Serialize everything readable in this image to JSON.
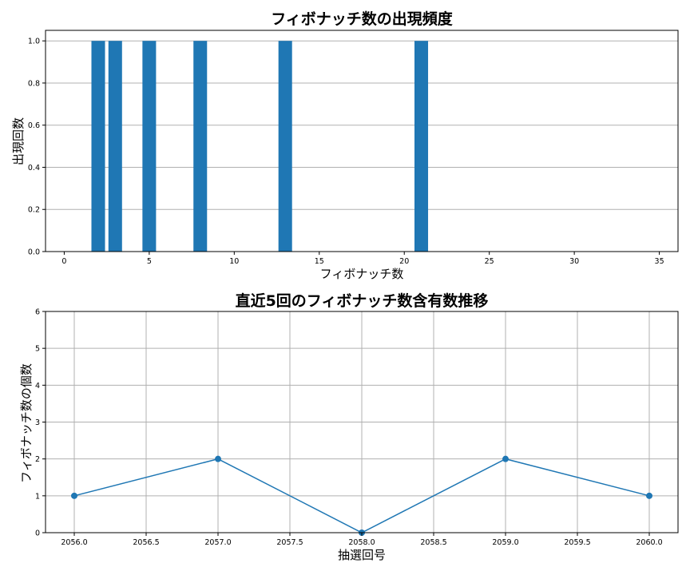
{
  "chart_data": [
    {
      "type": "bar",
      "title": "フィボナッチ数の出現頻度",
      "xlabel": "フィボナッチ数",
      "ylabel": "出現回数",
      "categories": [
        2,
        3,
        5,
        8,
        13,
        21
      ],
      "values": [
        1,
        1,
        1,
        1,
        1,
        1
      ],
      "xlim": [
        -1.1,
        36.1
      ],
      "ylim": [
        0,
        1.05
      ],
      "xticks": [
        0,
        5,
        10,
        15,
        20,
        25,
        30,
        35
      ],
      "xtick_labels": [
        "0",
        "5",
        "10",
        "15",
        "20",
        "25",
        "30",
        "35"
      ],
      "yticks": [
        0.0,
        0.2,
        0.4,
        0.6,
        0.8,
        1.0
      ],
      "ytick_labels": [
        "0.0",
        "0.2",
        "0.4",
        "0.6",
        "0.8",
        "1.0"
      ],
      "grid": "y-axis",
      "bar_color": "#1f77b4"
    },
    {
      "type": "line",
      "title": "直近5回のフィボナッチ数含有数推移",
      "xlabel": "抽選回号",
      "ylabel": "フィボナッチ数の個数",
      "x": [
        2056,
        2057,
        2058,
        2059,
        2060
      ],
      "values": [
        1,
        2,
        0,
        2,
        1
      ],
      "xlim": [
        2055.8,
        2060.2
      ],
      "ylim": [
        0,
        6
      ],
      "xticks": [
        2056.0,
        2056.5,
        2057.0,
        2057.5,
        2058.0,
        2058.5,
        2059.0,
        2059.5,
        2060.0
      ],
      "xtick_labels": [
        "2056.0",
        "2056.5",
        "2057.0",
        "2057.5",
        "2058.0",
        "2058.5",
        "2059.0",
        "2059.5",
        "2060.0"
      ],
      "yticks": [
        0,
        1,
        2,
        3,
        4,
        5,
        6
      ],
      "ytick_labels": [
        "0",
        "1",
        "2",
        "3",
        "4",
        "5",
        "6"
      ],
      "grid": "both",
      "marker": "circle",
      "line_color": "#1f77b4"
    }
  ]
}
